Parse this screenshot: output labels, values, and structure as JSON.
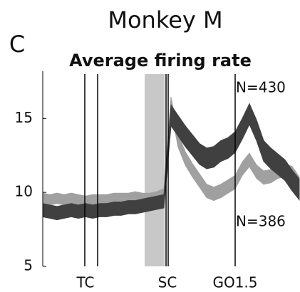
{
  "chart_data": {
    "type": "band",
    "title": "Monkey M",
    "panel_label": "C",
    "subtitle": "Average firing rate",
    "x": [
      0,
      1,
      2,
      3,
      4,
      5,
      6,
      7,
      8,
      9,
      10,
      11,
      12,
      13,
      14,
      15,
      16,
      17,
      18,
      19,
      20,
      21,
      22,
      23,
      24,
      25,
      26,
      27,
      28,
      29,
      30,
      31,
      32,
      33,
      34,
      35,
      36
    ],
    "xlim": [
      0,
      36
    ],
    "xticks": [
      {
        "value": 6,
        "label": "TC"
      },
      {
        "value": 17.5,
        "label": "SC"
      },
      {
        "value": 27,
        "label": "GO1.5"
      }
    ],
    "ylim": [
      5,
      18
    ],
    "yticks": [
      5,
      10,
      15
    ],
    "vlines": [
      5.9,
      7.7,
      17.3,
      17.6,
      27
    ],
    "span": [
      14.3,
      17.1
    ],
    "span_color": "#c8c8c8",
    "series": [
      {
        "color": "#a0a0a0",
        "lower": [
          9.25,
          9.15,
          9.25,
          9.15,
          9.25,
          9.15,
          9.05,
          9.15,
          9.15,
          9.15,
          9.25,
          9.25,
          9.25,
          9.35,
          9.25,
          9.25,
          9.35,
          9.55,
          15.55,
          13.05,
          11.85,
          11.05,
          10.35,
          9.65,
          9.45,
          9.65,
          9.95,
          10.25,
          11.15,
          11.75,
          10.95,
          10.55,
          10.65,
          10.95,
          11.05,
          10.85,
          10.15
        ],
        "upper": [
          9.95,
          9.85,
          9.95,
          9.85,
          9.95,
          9.85,
          9.75,
          9.85,
          9.85,
          9.85,
          9.95,
          9.95,
          9.95,
          10.05,
          9.95,
          9.95,
          10.05,
          10.25,
          16.45,
          13.95,
          12.75,
          11.95,
          11.25,
          10.55,
          10.35,
          10.55,
          10.85,
          11.15,
          12.05,
          12.65,
          11.85,
          11.45,
          11.55,
          11.85,
          11.95,
          11.75,
          11.05
        ]
      },
      {
        "color": "#404040",
        "lower": [
          8.35,
          8.25,
          8.15,
          8.25,
          8.35,
          8.25,
          8.35,
          8.25,
          8.35,
          8.35,
          8.45,
          8.45,
          8.55,
          8.55,
          8.65,
          8.75,
          8.85,
          8.95,
          14.5,
          13.8,
          13.1,
          12.5,
          11.9,
          11.6,
          11.7,
          12.1,
          12.3,
          12.7,
          13.6,
          14.6,
          13.5,
          12.1,
          11.6,
          11.2,
          10.8,
          10.1,
          9.5
        ],
        "upper": [
          9.25,
          9.15,
          9.05,
          9.15,
          9.25,
          9.15,
          9.25,
          9.15,
          9.25,
          9.25,
          9.35,
          9.35,
          9.45,
          9.45,
          9.55,
          9.65,
          9.75,
          9.85,
          15.9,
          15.2,
          14.5,
          13.9,
          13.3,
          13.0,
          13.1,
          13.5,
          13.7,
          14.1,
          15.0,
          16.0,
          14.9,
          13.5,
          13.0,
          12.6,
          12.2,
          11.5,
          10.9
        ]
      }
    ],
    "annotations": [
      "N=430",
      "N=386"
    ]
  }
}
